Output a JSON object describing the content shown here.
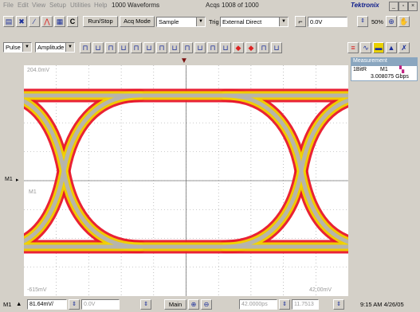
{
  "menubar": {
    "items": [
      "File",
      "Edit",
      "View",
      "Setup",
      "Utilities",
      "Help"
    ],
    "waveforms": "1000 Waveforms",
    "acqs": "Acqs 1008 of 1000",
    "brand": "Tektronix"
  },
  "toolbar": {
    "c_label": "C",
    "runstop_label": "Run/Stop",
    "acq_mode_label": "Acq Mode",
    "acq_mode_value": "Sample",
    "trig_label": "Trig",
    "trig_value": "External Direct",
    "trig_level": "0.0V",
    "percent_value": "50%"
  },
  "meas_toolbar": {
    "pulse_value": "Pulse",
    "amplitude_value": "Amplitude"
  },
  "screen": {
    "top_label": "204.0mV",
    "bottom_left_label": "-615mV",
    "bottom_right_label": "42.00mV",
    "mid_label": "M1",
    "marker_label": "M1"
  },
  "measurement": {
    "header": "Measurement",
    "row_id": "1BitR",
    "row_src": "M1",
    "row_value": "3.008075 Gbps"
  },
  "bottom": {
    "m1": "M1",
    "scale": "81.64mV/",
    "offset": "0.0V",
    "main": "Main",
    "timebase": "42.0000ps",
    "pos": "11.7513",
    "time": "9:15 AM 4/26/05"
  },
  "colors": {
    "eye_outer": "#e8162a",
    "eye_mid": "#f0d400",
    "eye_core": "#b3b3b3",
    "grid": "#9a9a9a"
  }
}
